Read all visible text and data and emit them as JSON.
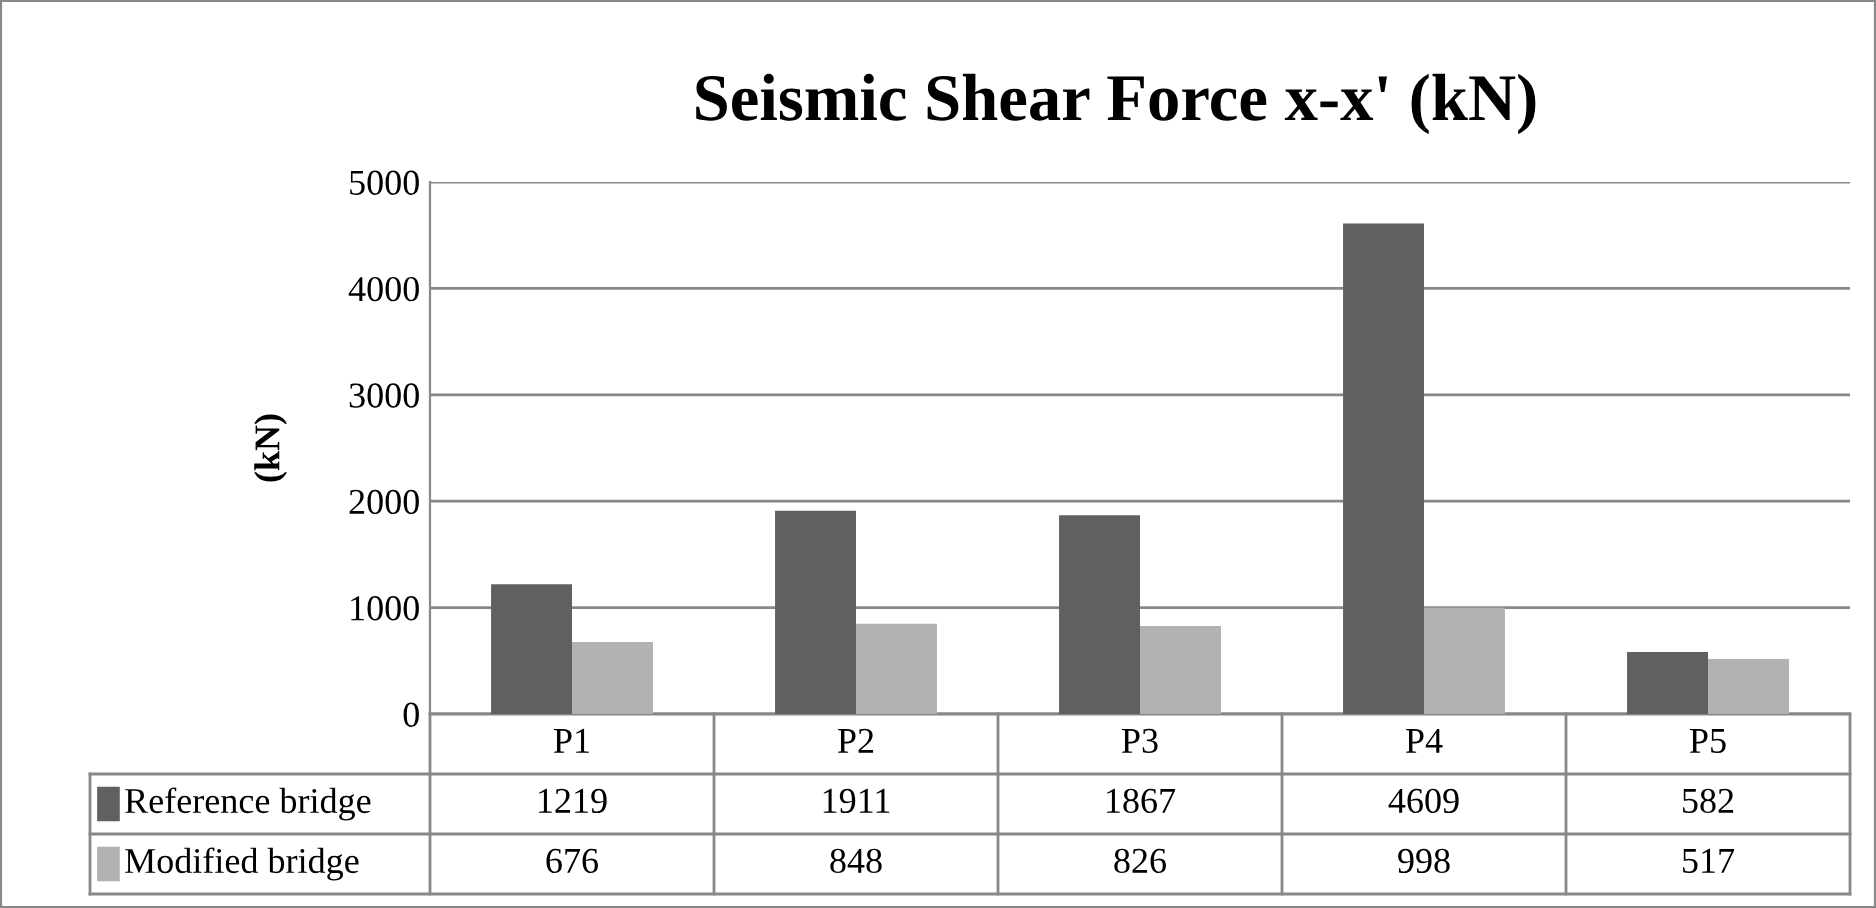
{
  "chart_data": {
    "type": "bar",
    "title": "Seismic Shear Force x-x' (kN)",
    "ylabel": "(kN)",
    "categories": [
      "P1",
      "P2",
      "P3",
      "P4",
      "P5"
    ],
    "series": [
      {
        "name": "Reference bridge",
        "color": "#606060",
        "values": [
          1219,
          1911,
          1867,
          4609,
          582
        ]
      },
      {
        "name": "Modified bridge",
        "color": "#b2b2b2",
        "values": [
          676,
          848,
          826,
          998,
          517
        ]
      }
    ],
    "ylim": [
      0,
      5000
    ],
    "yticks": [
      0,
      1000,
      2000,
      3000,
      4000,
      5000
    ],
    "grid": "y",
    "legend": "bottom",
    "data_labels": true
  }
}
